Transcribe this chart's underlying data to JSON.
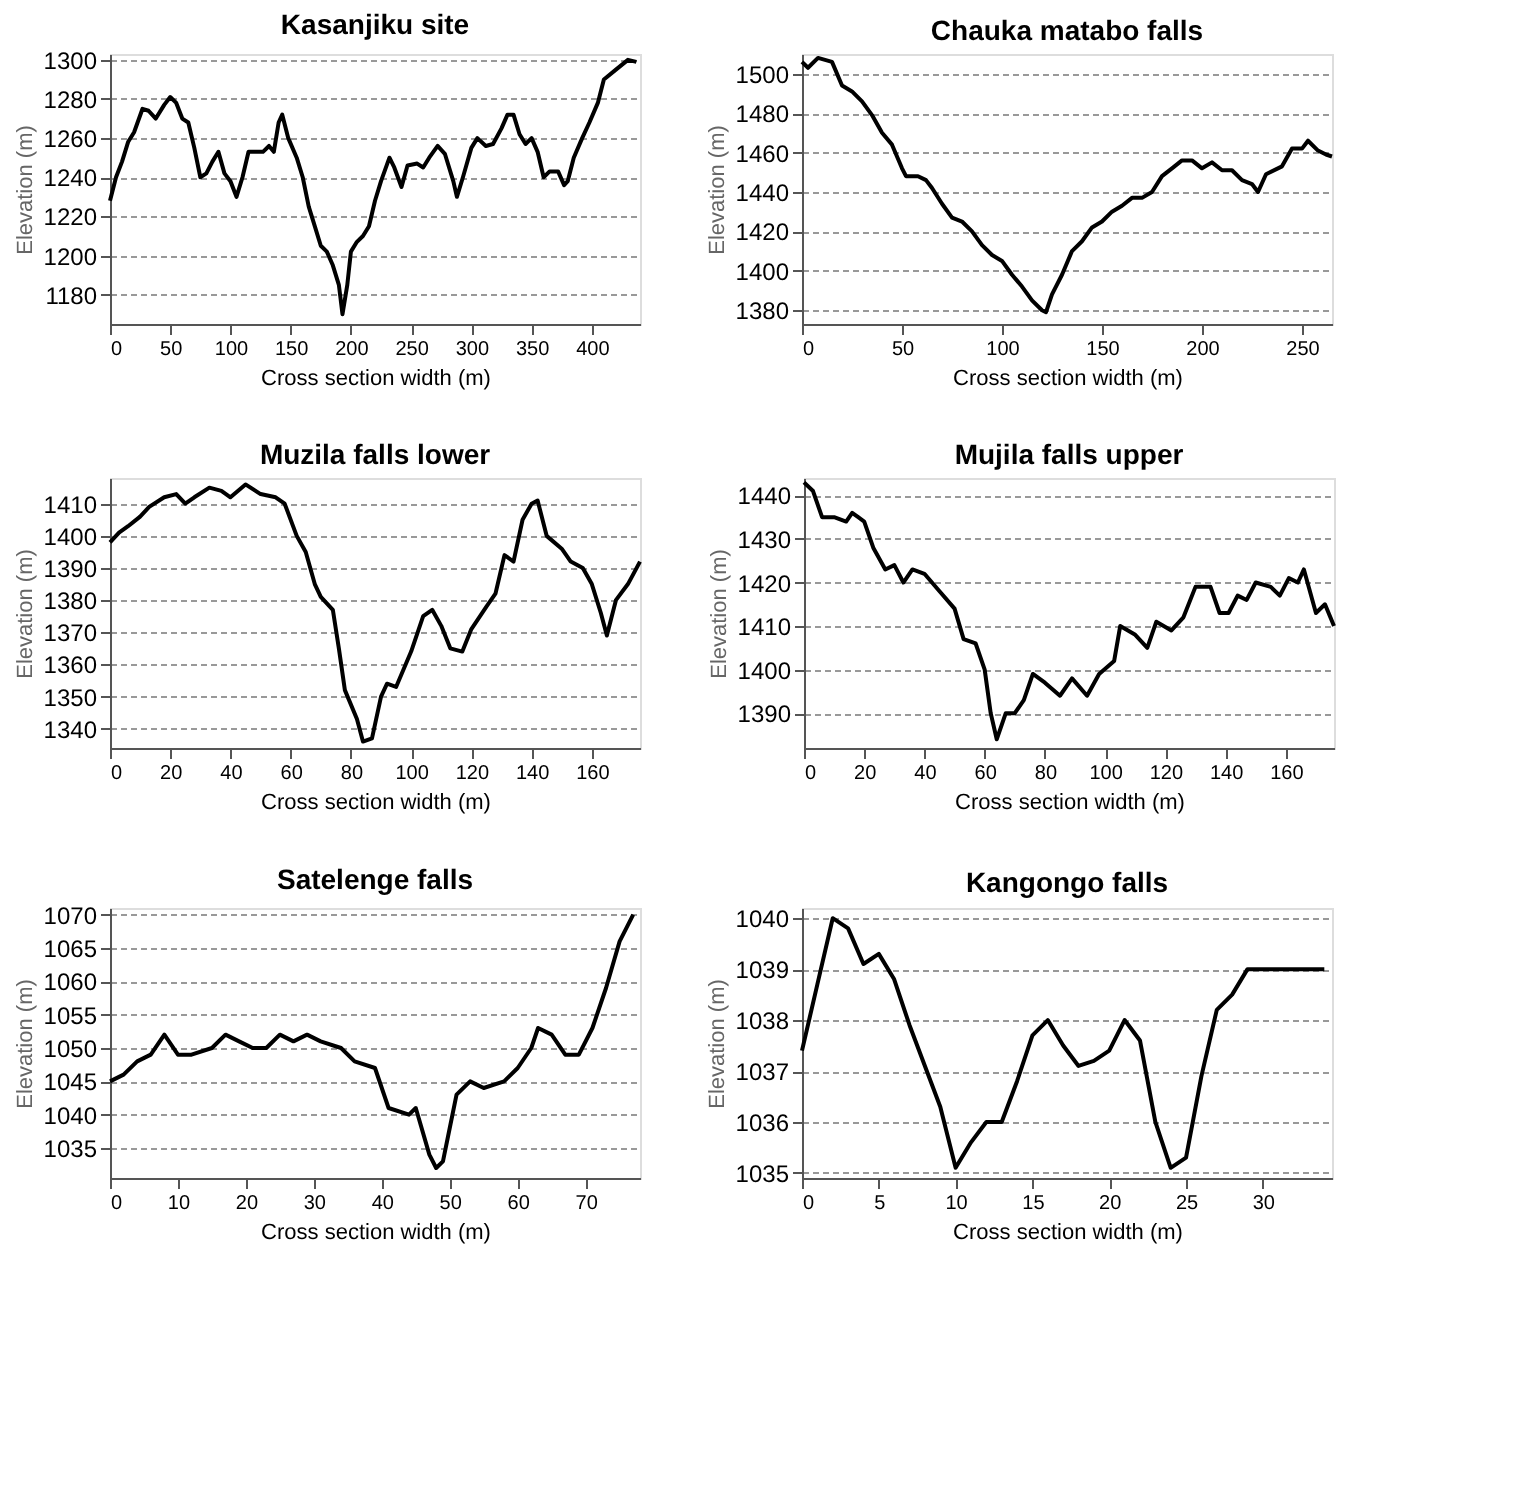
{
  "chart_data": [
    {
      "type": "line",
      "title": "Kasanjiku site",
      "xlabel": "Cross section width (m)",
      "ylabel": "Elevation (m)",
      "xlim": [
        0,
        440
      ],
      "ylim": [
        1165,
        1303
      ],
      "xticks": [
        0,
        50,
        100,
        150,
        200,
        250,
        300,
        350,
        400
      ],
      "yticks": [
        1180,
        1200,
        1220,
        1240,
        1260,
        1280,
        1300
      ],
      "grid": "y",
      "x": [
        0,
        5,
        10,
        15,
        20,
        27,
        32,
        38,
        45,
        50,
        55,
        60,
        65,
        70,
        75,
        80,
        85,
        90,
        95,
        100,
        105,
        110,
        115,
        120,
        127,
        132,
        136,
        140,
        143,
        148,
        155,
        160,
        165,
        170,
        175,
        180,
        185,
        190,
        193,
        197,
        200,
        205,
        210,
        215,
        220,
        225,
        232,
        236,
        242,
        247,
        255,
        260,
        265,
        272,
        278,
        285,
        288,
        293,
        300,
        305,
        312,
        318,
        325,
        330,
        335,
        340,
        345,
        350,
        355,
        360,
        365,
        372,
        377,
        380,
        385,
        392,
        398,
        405,
        410,
        420,
        430,
        437
      ],
      "series": [
        {
          "color": "#000000",
          "values": [
            1228,
            1240,
            1248,
            1258,
            1263,
            1275,
            1274,
            1270,
            1277,
            1281,
            1278,
            1270,
            1268,
            1255,
            1240,
            1242,
            1248,
            1253,
            1242,
            1238,
            1230,
            1240,
            1253,
            1253,
            1253,
            1256,
            1253,
            1268,
            1272,
            1260,
            1250,
            1240,
            1225,
            1215,
            1205,
            1202,
            1195,
            1185,
            1170,
            1185,
            1202,
            1207,
            1210,
            1215,
            1228,
            1238,
            1250,
            1245,
            1235,
            1246,
            1247,
            1245,
            1250,
            1256,
            1252,
            1238,
            1230,
            1240,
            1255,
            1260,
            1256,
            1257,
            1265,
            1272,
            1272,
            1262,
            1257,
            1260,
            1253,
            1240,
            1243,
            1243,
            1236,
            1238,
            1250,
            1260,
            1268,
            1278,
            1290,
            1295,
            1300,
            1299
          ]
        }
      ]
    },
    {
      "type": "line",
      "title": "Chauka matabo falls",
      "xlabel": "Cross section width (m)",
      "ylabel": "Elevation (m)",
      "xlim": [
        0,
        265
      ],
      "ylim": [
        1373,
        1510
      ],
      "xticks": [
        0,
        50,
        100,
        150,
        200,
        250
      ],
      "yticks": [
        1380,
        1400,
        1420,
        1440,
        1460,
        1480,
        1500
      ],
      "grid": "y",
      "x": [
        0,
        3,
        8,
        15,
        20,
        25,
        30,
        35,
        40,
        45,
        50,
        52,
        58,
        62,
        65,
        70,
        75,
        80,
        85,
        90,
        95,
        100,
        105,
        110,
        115,
        120,
        122,
        125,
        130,
        135,
        140,
        145,
        150,
        155,
        160,
        165,
        170,
        175,
        180,
        185,
        190,
        195,
        200,
        205,
        210,
        215,
        220,
        225,
        228,
        232,
        240,
        245,
        250,
        253,
        258,
        262,
        265
      ],
      "series": [
        {
          "color": "#000000",
          "values": [
            1506,
            1503,
            1508,
            1506,
            1494,
            1491,
            1486,
            1479,
            1470,
            1464,
            1452,
            1448,
            1448,
            1446,
            1442,
            1434,
            1427,
            1425,
            1420,
            1413,
            1408,
            1405,
            1398,
            1392,
            1385,
            1380,
            1379,
            1388,
            1398,
            1410,
            1415,
            1422,
            1425,
            1430,
            1433,
            1437,
            1437,
            1440,
            1448,
            1452,
            1456,
            1456,
            1452,
            1455,
            1451,
            1451,
            1446,
            1444,
            1440,
            1449,
            1453,
            1462,
            1462,
            1466,
            1461,
            1459,
            1458
          ]
        }
      ]
    },
    {
      "type": "line",
      "title": "Muzila falls lower",
      "xlabel": "Cross section width (m)",
      "ylabel": "Elevation (m)",
      "xlim": [
        0,
        176
      ],
      "ylim": [
        1334,
        1418
      ],
      "xticks": [
        0,
        20,
        40,
        60,
        80,
        100,
        120,
        140,
        160
      ],
      "yticks": [
        1340,
        1350,
        1360,
        1370,
        1380,
        1390,
        1400,
        1410
      ],
      "grid": "y",
      "x": [
        0,
        3,
        6,
        10,
        13,
        18,
        22,
        25,
        28,
        33,
        37,
        40,
        45,
        50,
        55,
        58,
        62,
        65,
        68,
        70,
        74,
        76,
        78,
        82,
        84,
        87,
        90,
        92,
        95,
        100,
        104,
        107,
        110,
        113,
        117,
        120,
        125,
        128,
        131,
        134,
        137,
        140,
        142,
        145,
        150,
        153,
        157,
        160,
        163,
        165,
        168,
        172,
        176
      ],
      "series": [
        {
          "color": "#000000",
          "values": [
            1398,
            1401,
            1403,
            1406,
            1409,
            1412,
            1413,
            1410,
            1412,
            1415,
            1414,
            1412,
            1416,
            1413,
            1412,
            1410,
            1400,
            1395,
            1385,
            1381,
            1377,
            1365,
            1352,
            1343,
            1336,
            1337,
            1350,
            1354,
            1353,
            1364,
            1375,
            1377,
            1372,
            1365,
            1364,
            1371,
            1378,
            1382,
            1394,
            1392,
            1405,
            1410,
            1411,
            1400,
            1396,
            1392,
            1390,
            1385,
            1376,
            1369,
            1380,
            1385,
            1392
          ]
        }
      ]
    },
    {
      "type": "line",
      "title": "Mujila falls upper",
      "xlabel": "Cross section width (m)",
      "ylabel": "Elevation (m)",
      "xlim": [
        0,
        176
      ],
      "ylim": [
        1382,
        1444
      ],
      "xticks": [
        0,
        20,
        40,
        60,
        80,
        100,
        120,
        140,
        160
      ],
      "yticks": [
        1390,
        1400,
        1410,
        1420,
        1430,
        1440
      ],
      "grid": "y",
      "x": [
        0,
        3,
        6,
        10,
        14,
        16,
        18,
        20,
        23,
        27,
        30,
        33,
        36,
        40,
        45,
        50,
        53,
        57,
        60,
        62,
        64,
        67,
        70,
        73,
        76,
        80,
        85,
        89,
        94,
        98,
        103,
        105,
        110,
        114,
        117,
        122,
        126,
        130,
        135,
        138,
        141,
        144,
        147,
        150,
        155,
        158,
        161,
        164,
        166,
        170,
        173,
        176
      ],
      "series": [
        {
          "color": "#000000",
          "values": [
            1443,
            1441,
            1435,
            1435,
            1434,
            1436,
            1435,
            1434,
            1428,
            1423,
            1424,
            1420,
            1423,
            1422,
            1418,
            1414,
            1407,
            1406,
            1400,
            1390,
            1384,
            1390,
            1390,
            1393,
            1399,
            1397,
            1394,
            1398,
            1394,
            1399,
            1402,
            1410,
            1408,
            1405,
            1411,
            1409,
            1412,
            1419,
            1419,
            1413,
            1413,
            1417,
            1416,
            1420,
            1419,
            1417,
            1421,
            1420,
            1423,
            1413,
            1415,
            1410
          ]
        }
      ]
    },
    {
      "type": "line",
      "title": "Satelenge falls",
      "xlabel": "Cross section width (m)",
      "ylabel": "Elevation (m)",
      "xlim": [
        0,
        78
      ],
      "ylim": [
        1030.5,
        1071
      ],
      "xticks": [
        0,
        10,
        20,
        30,
        40,
        50,
        60,
        70
      ],
      "yticks": [
        1035,
        1040,
        1045,
        1050,
        1055,
        1060,
        1065,
        1070
      ],
      "grid": "y",
      "x": [
        0,
        2,
        4,
        6,
        8,
        10,
        12,
        15,
        17,
        19,
        21,
        23,
        25,
        27,
        29,
        31,
        34,
        36,
        39,
        41,
        44,
        45,
        47,
        48,
        49,
        50,
        51,
        53,
        55,
        58,
        60,
        62,
        63,
        65,
        67,
        69,
        71,
        73,
        75,
        77
      ],
      "series": [
        {
          "color": "#000000",
          "values": [
            1045,
            1046,
            1048,
            1049,
            1052,
            1049,
            1049,
            1050,
            1052,
            1051,
            1050,
            1050,
            1052,
            1051,
            1052,
            1051,
            1050,
            1048,
            1047,
            1041,
            1040,
            1041,
            1034,
            1032,
            1033,
            1038,
            1043,
            1045,
            1044,
            1045,
            1047,
            1050,
            1053,
            1052,
            1049,
            1049,
            1053,
            1059,
            1066,
            1070
          ]
        }
      ]
    },
    {
      "type": "line",
      "title": "Kangongo falls",
      "xlabel": "Cross section width (m)",
      "ylabel": "Elevation (m)",
      "xlim": [
        0,
        34.5
      ],
      "ylim": [
        1034.9,
        1040.2
      ],
      "xticks": [
        0,
        5,
        10,
        15,
        20,
        25,
        30
      ],
      "yticks": [
        1035,
        1036,
        1037,
        1038,
        1039,
        1040
      ],
      "grid": "y",
      "x": [
        0,
        1,
        2,
        3,
        4,
        5,
        6,
        7,
        8,
        9,
        10,
        11,
        12,
        13,
        14,
        15,
        16,
        17,
        18,
        19,
        20,
        21,
        22,
        23,
        24,
        25,
        26,
        27,
        28,
        29,
        34
      ],
      "series": [
        {
          "color": "#000000",
          "values": [
            1037.4,
            1038.7,
            1040,
            1039.8,
            1039.1,
            1039.3,
            1038.8,
            1037.9,
            1037.1,
            1036.3,
            1035.1,
            1035.6,
            1036,
            1036,
            1036.8,
            1037.7,
            1038,
            1037.5,
            1037.1,
            1037.2,
            1037.4,
            1038,
            1037.6,
            1036,
            1035.1,
            1035.3,
            1036.9,
            1038.2,
            1038.5,
            1039,
            1039
          ]
        }
      ]
    }
  ]
}
